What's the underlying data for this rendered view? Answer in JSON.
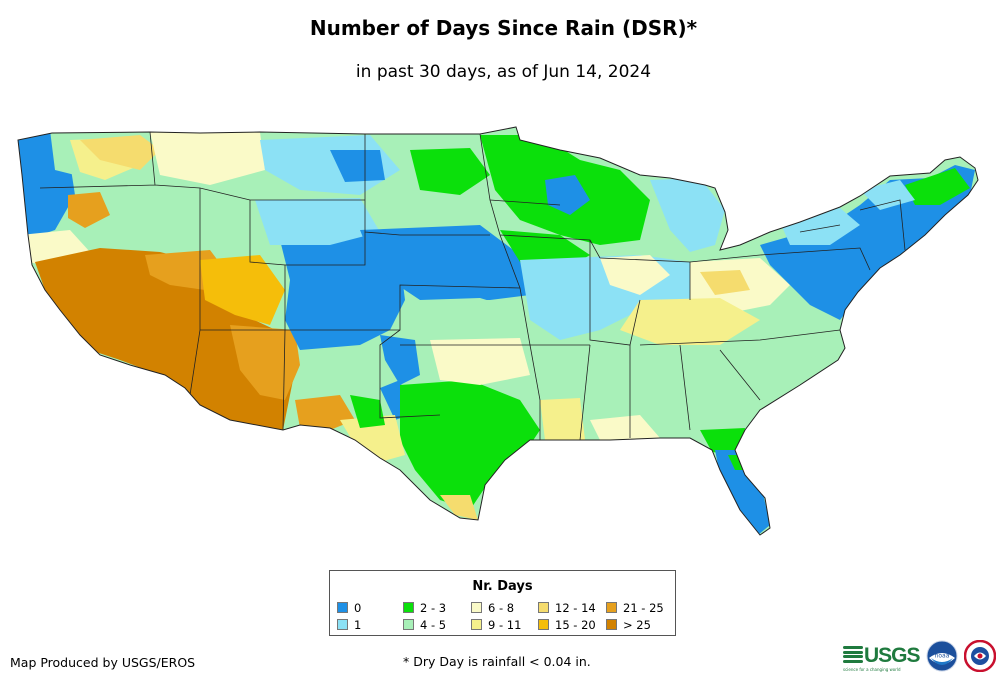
{
  "title": "Number of Days Since Rain (DSR)*",
  "subtitle": "in past 30 days, as of Jun 14, 2024",
  "legend": {
    "title": "Nr. Days",
    "items": [
      {
        "label": "0",
        "color": "#1e90e6"
      },
      {
        "label": "1",
        "color": "#8ce1f5"
      },
      {
        "label": "2 - 3",
        "color": "#0be00b"
      },
      {
        "label": "4 - 5",
        "color": "#a8f0b8"
      },
      {
        "label": "6 - 8",
        "color": "#fafac8"
      },
      {
        "label": "9 - 11",
        "color": "#f5f08c"
      },
      {
        "label": "12 - 14",
        "color": "#f5dc6e"
      },
      {
        "label": "15 - 20",
        "color": "#f5be0a"
      },
      {
        "label": "21 - 25",
        "color": "#e6a01e"
      },
      {
        "label": "> 25",
        "color": "#d28200"
      }
    ]
  },
  "footer": {
    "credit": "Map Produced by USGS/EROS",
    "note": "* Dry Day is rainfall < 0.04 in."
  },
  "logos": {
    "usgs_text": "USGS",
    "usgs_tagline": "science for a changing world",
    "noaa_text": "noaa",
    "nws_text": "NWS"
  }
}
